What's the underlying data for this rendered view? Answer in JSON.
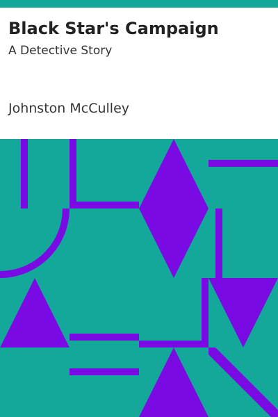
{
  "book": {
    "title": "Black Star's Campaign",
    "subtitle": "A Detective Story",
    "author": "Johnston McCulley"
  },
  "colors": {
    "background": "#ffffff",
    "teal": "#14a89a",
    "purple": "#7a0ae3",
    "text": "#222222"
  }
}
